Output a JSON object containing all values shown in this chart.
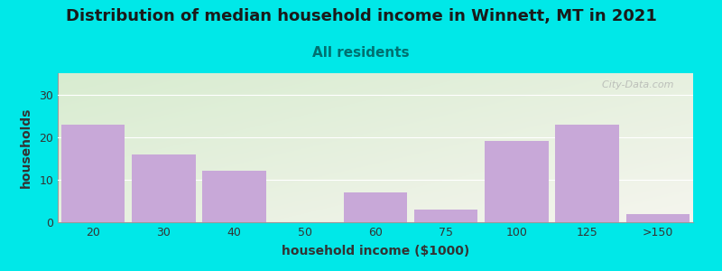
{
  "title": "Distribution of median household income in Winnett, MT in 2021",
  "subtitle": "All residents",
  "xlabel": "household income ($1000)",
  "ylabel": "households",
  "categories": [
    "20",
    "30",
    "40",
    "50",
    "60",
    "75",
    "100",
    "125",
    ">150"
  ],
  "values": [
    23,
    16,
    12,
    0,
    7,
    3,
    19,
    23,
    2
  ],
  "bar_color": "#c8a8d8",
  "background_color": "#00e8e8",
  "plot_bg_top_left": "#d8ecd0",
  "plot_bg_bottom_right": "#f5f5ee",
  "ylim": [
    0,
    35
  ],
  "yticks": [
    0,
    10,
    20,
    30
  ],
  "title_fontsize": 13,
  "subtitle_fontsize": 11,
  "subtitle_color": "#007070",
  "axis_label_fontsize": 10,
  "watermark": "  City-Data.com",
  "watermark_color": "#aaaaaa"
}
